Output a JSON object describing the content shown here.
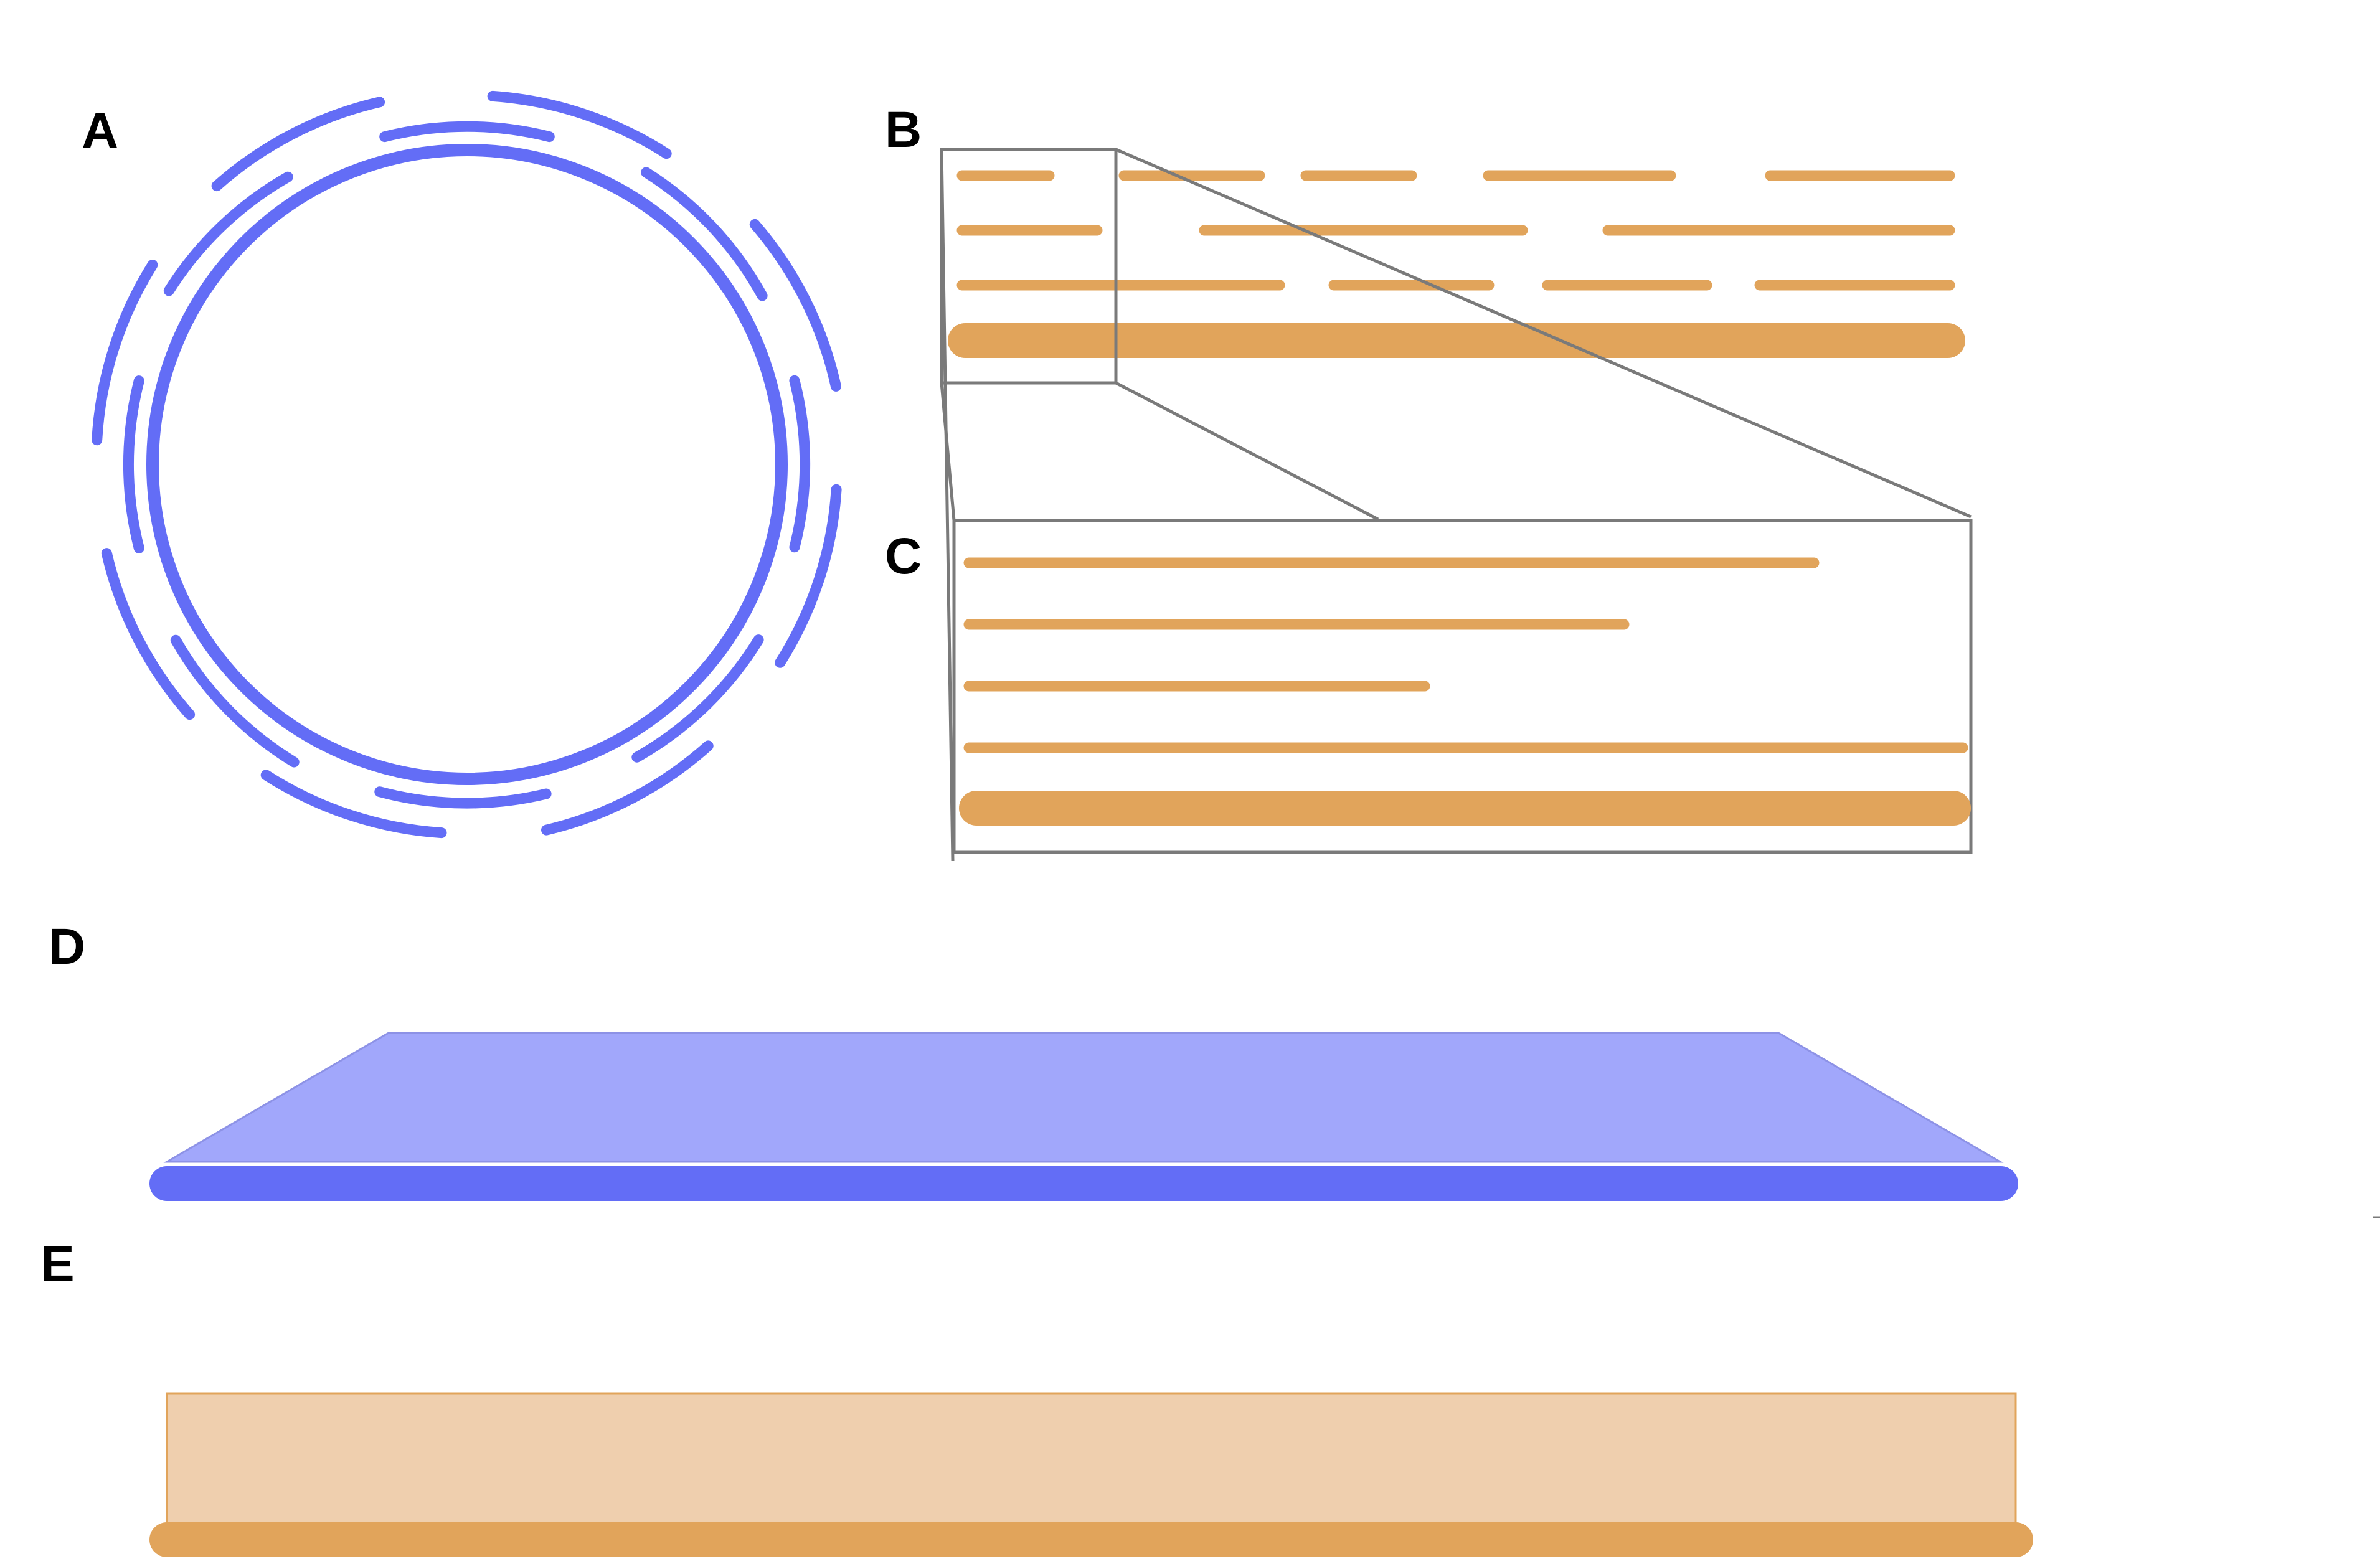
{
  "panels": {
    "a": {
      "label": "A"
    },
    "b": {
      "label": "B"
    },
    "c": {
      "label": "C"
    },
    "d": {
      "label": "D"
    },
    "e": {
      "label": "E"
    }
  },
  "colors": {
    "blue": "#636df6",
    "blue_light": "#a1a7fb",
    "orange": "#e1a45b",
    "orange_light": "#efcfae",
    "frame": "#7a7a7a"
  }
}
